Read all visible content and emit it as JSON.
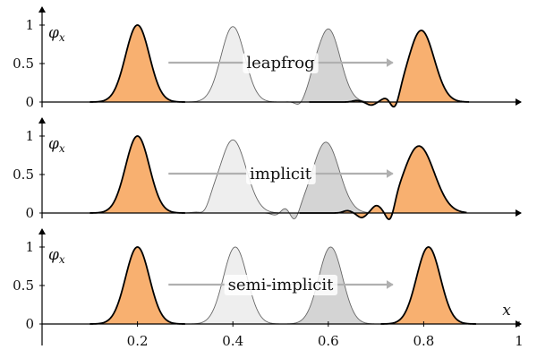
{
  "chart_data": [
    {
      "type": "area",
      "label": "leapfrog",
      "ylabel": "φ_x",
      "xlim": [
        0,
        1
      ],
      "ylim": [
        -0.2,
        1.1
      ],
      "yticks": [
        "0",
        "0.5",
        "1"
      ],
      "series": [
        {
          "kind": "initial",
          "fill": "#f8b070",
          "peaks": [
            {
              "x": 0.2,
              "amplitude": 1.0,
              "width": 0.025
            }
          ]
        },
        {
          "kind": "intermediate",
          "fill": "#eeeeee",
          "peaks": [
            {
              "x": 0.4,
              "amplitude": 0.98,
              "width": 0.025
            }
          ]
        },
        {
          "kind": "intermediate",
          "fill": "#d4d4d4",
          "peaks": [
            {
              "x": 0.6,
              "amplitude": 0.95,
              "width": 0.025
            }
          ],
          "ripples": [
            {
              "x": 0.54,
              "amplitude": -0.07
            },
            {
              "x": 0.57,
              "amplitude": 0.05
            }
          ]
        },
        {
          "kind": "final",
          "fill": "#f8b070",
          "peaks": [
            {
              "x": 0.795,
              "amplitude": 0.93,
              "width": 0.027
            }
          ],
          "ripples": [
            {
              "x": 0.74,
              "amplitude": -0.17
            },
            {
              "x": 0.72,
              "amplitude": 0.04
            },
            {
              "x": 0.69,
              "amplitude": -0.04
            },
            {
              "x": 0.66,
              "amplitude": 0.02
            }
          ]
        }
      ]
    },
    {
      "type": "area",
      "label": "implicit",
      "ylabel": "φ_x",
      "xlim": [
        0,
        1
      ],
      "ylim": [
        -0.2,
        1.1
      ],
      "yticks": [
        "0",
        "0.5",
        "1"
      ],
      "series": [
        {
          "kind": "initial",
          "fill": "#f8b070",
          "peaks": [
            {
              "x": 0.2,
              "amplitude": 1.0,
              "width": 0.025
            }
          ]
        },
        {
          "kind": "intermediate",
          "fill": "#eeeeee",
          "peaks": [
            {
              "x": 0.4,
              "amplitude": 0.95,
              "width": 0.028
            }
          ],
          "ripples": [
            {
              "x": 0.34,
              "amplitude": -0.06
            },
            {
              "x": 0.36,
              "amplitude": 0.03
            }
          ]
        },
        {
          "kind": "intermediate",
          "fill": "#d4d4d4",
          "peaks": [
            {
              "x": 0.595,
              "amplitude": 0.92,
              "width": 0.028
            }
          ],
          "ripples": [
            {
              "x": 0.53,
              "amplitude": -0.14
            },
            {
              "x": 0.51,
              "amplitude": 0.06
            },
            {
              "x": 0.49,
              "amplitude": -0.03
            }
          ]
        },
        {
          "kind": "final",
          "fill": "#f8b070",
          "peaks": [
            {
              "x": 0.79,
              "amplitude": 0.87,
              "width": 0.032
            }
          ],
          "ripples": [
            {
              "x": 0.73,
              "amplitude": -0.22
            },
            {
              "x": 0.7,
              "amplitude": 0.08
            },
            {
              "x": 0.67,
              "amplitude": -0.06
            },
            {
              "x": 0.64,
              "amplitude": 0.03
            }
          ]
        }
      ]
    },
    {
      "type": "area",
      "label": "semi-implicit",
      "ylabel": "φ_x",
      "xlabel": "x",
      "xlim": [
        0,
        1
      ],
      "ylim": [
        -0.2,
        1.1
      ],
      "yticks": [
        "0",
        "0.5",
        "1"
      ],
      "xticks": [
        "0.2",
        "0.4",
        "0.6",
        "0.8",
        "1"
      ],
      "series": [
        {
          "kind": "initial",
          "fill": "#f8b070",
          "peaks": [
            {
              "x": 0.2,
              "amplitude": 1.0,
              "width": 0.025
            }
          ]
        },
        {
          "kind": "intermediate",
          "fill": "#eeeeee",
          "peaks": [
            {
              "x": 0.405,
              "amplitude": 1.0,
              "width": 0.025
            }
          ]
        },
        {
          "kind": "intermediate",
          "fill": "#d4d4d4",
          "peaks": [
            {
              "x": 0.605,
              "amplitude": 1.0,
              "width": 0.025
            }
          ]
        },
        {
          "kind": "final",
          "fill": "#f8b070",
          "peaks": [
            {
              "x": 0.81,
              "amplitude": 1.0,
              "width": 0.025
            }
          ]
        }
      ]
    }
  ]
}
